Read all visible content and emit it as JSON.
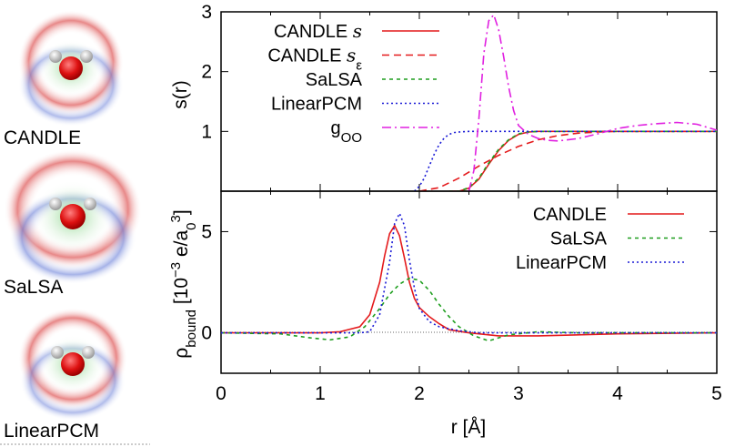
{
  "models": [
    {
      "label": "CANDLE",
      "icon": "water-molecule-candle-icon"
    },
    {
      "label": "SaLSA",
      "icon": "water-molecule-salsa-icon"
    },
    {
      "label": "LinearPCM",
      "icon": "water-molecule-linearpcm-icon"
    }
  ],
  "colors": {
    "CANDLE": "#e41a1c",
    "SaLSA": "#1e9e1e",
    "LinearPCM": "#1a1ad6",
    "gOO": "#e020e0",
    "molecule_oxygen": "#dd1111",
    "molecule_hydrogen": "#cccccc",
    "cavity_positive": "#e06060",
    "cavity_negative": "#6a7fd8",
    "cavity_core": "#7fd07f"
  },
  "chart_data": [
    {
      "type": "line",
      "title": "",
      "xlabel": "",
      "ylabel": "s(r)",
      "xlim": [
        0,
        5
      ],
      "ylim": [
        0,
        3
      ],
      "yticks": [
        "1",
        "2",
        "3"
      ],
      "legend_position": "top-left",
      "series": [
        {
          "name": "CANDLE s",
          "label_main": "CANDLE ",
          "label_sym": "s",
          "label_sub": "",
          "color": "#e41a1c",
          "dash": "",
          "x": [
            2.3,
            2.4,
            2.5,
            2.6,
            2.7,
            2.8,
            2.9,
            3.0,
            3.1,
            3.2,
            5.0
          ],
          "y": [
            0.0,
            0.0,
            0.05,
            0.2,
            0.45,
            0.68,
            0.85,
            0.95,
            0.99,
            1.0,
            1.0
          ]
        },
        {
          "name": "CANDLE sε",
          "label_main": "CANDLE ",
          "label_sym": "s",
          "label_sub": "ε",
          "color": "#e41a1c",
          "dash": "8,5",
          "x": [
            2.0,
            2.2,
            2.4,
            2.6,
            2.8,
            3.0,
            3.2,
            3.4,
            3.6,
            3.8,
            4.0,
            5.0
          ],
          "y": [
            0.0,
            0.06,
            0.22,
            0.42,
            0.6,
            0.75,
            0.86,
            0.93,
            0.97,
            0.99,
            1.0,
            1.0
          ]
        },
        {
          "name": "SaLSA",
          "label_main": "SaLSA",
          "label_sym": "",
          "label_sub": "",
          "color": "#1e9e1e",
          "dash": "4,4",
          "x": [
            2.3,
            2.4,
            2.5,
            2.6,
            2.7,
            2.8,
            2.9,
            3.0,
            3.1,
            3.2,
            5.0
          ],
          "y": [
            0.0,
            0.0,
            0.06,
            0.22,
            0.47,
            0.7,
            0.86,
            0.96,
            0.99,
            1.0,
            1.0
          ]
        },
        {
          "name": "LinearPCM",
          "label_main": "LinearPCM",
          "label_sym": "",
          "label_sub": "",
          "color": "#1a1ad6",
          "dash": "2,3",
          "x": [
            1.95,
            2.0,
            2.05,
            2.1,
            2.15,
            2.2,
            2.25,
            2.3,
            2.35,
            2.4,
            2.5,
            5.0
          ],
          "y": [
            0.0,
            0.08,
            0.22,
            0.42,
            0.62,
            0.78,
            0.89,
            0.95,
            0.98,
            0.99,
            1.0,
            1.0
          ]
        },
        {
          "name": "gOO",
          "label_main": "g",
          "label_sym": "",
          "label_sub": "OO",
          "color": "#e020e0",
          "dash": "10,4,2,4",
          "x": [
            2.5,
            2.55,
            2.6,
            2.65,
            2.7,
            2.75,
            2.8,
            2.85,
            2.9,
            2.95,
            3.0,
            3.1,
            3.2,
            3.3,
            3.4,
            3.6,
            3.8,
            4.0,
            4.2,
            4.4,
            4.6,
            4.8,
            5.0
          ],
          "y": [
            0.0,
            0.35,
            1.2,
            2.3,
            2.85,
            2.95,
            2.7,
            2.25,
            1.75,
            1.35,
            1.1,
            0.95,
            0.88,
            0.85,
            0.84,
            0.88,
            0.96,
            1.05,
            1.1,
            1.13,
            1.15,
            1.12,
            1.02
          ]
        }
      ]
    },
    {
      "type": "line",
      "title": "",
      "xlabel": "r [Å]",
      "ylabel_main": "ρ",
      "ylabel_sub": "bound",
      "ylabel_rest": " [10",
      "ylabel_exp": "−3",
      "ylabel_unit": " e/a",
      "ylabel_unit_sub": "0",
      "ylabel_unit_exp": "3",
      "ylabel_close": "]",
      "xlim": [
        0,
        5
      ],
      "ylim": [
        -2,
        7
      ],
      "xticks": [
        "0",
        "1",
        "2",
        "3",
        "4",
        "5"
      ],
      "yticks": [
        "0",
        "5"
      ],
      "legend_position": "top-right",
      "zero_line": true,
      "series": [
        {
          "name": "CANDLE",
          "color": "#e41a1c",
          "dash": "",
          "x": [
            0.0,
            1.0,
            1.2,
            1.4,
            1.5,
            1.6,
            1.65,
            1.7,
            1.75,
            1.8,
            1.85,
            1.9,
            1.95,
            2.0,
            2.1,
            2.2,
            2.3,
            2.5,
            2.8,
            3.2,
            4.0,
            5.0
          ],
          "y": [
            0.0,
            0.0,
            0.05,
            0.3,
            0.9,
            2.5,
            3.8,
            4.9,
            5.3,
            4.8,
            3.7,
            2.5,
            1.7,
            1.25,
            0.8,
            0.45,
            0.15,
            0.0,
            -0.15,
            -0.15,
            -0.05,
            0.0
          ]
        },
        {
          "name": "SaLSA",
          "color": "#1e9e1e",
          "dash": "4,4",
          "x": [
            0.0,
            0.6,
            0.9,
            1.1,
            1.3,
            1.45,
            1.6,
            1.7,
            1.8,
            1.9,
            2.0,
            2.1,
            2.2,
            2.3,
            2.4,
            2.55,
            2.7,
            2.9,
            3.2,
            3.6,
            5.0
          ],
          "y": [
            0.0,
            -0.05,
            -0.25,
            -0.35,
            -0.2,
            0.3,
            1.2,
            1.9,
            2.4,
            2.7,
            2.6,
            2.1,
            1.4,
            0.8,
            0.3,
            -0.15,
            -0.4,
            -0.1,
            0.05,
            0.0,
            0.0
          ]
        },
        {
          "name": "LinearPCM",
          "color": "#1a1ad6",
          "dash": "2,3",
          "x": [
            0.0,
            1.4,
            1.5,
            1.6,
            1.7,
            1.75,
            1.8,
            1.85,
            1.9,
            1.95,
            2.0,
            2.1,
            2.2,
            2.4,
            2.6,
            5.0
          ],
          "y": [
            0.0,
            0.0,
            0.05,
            0.9,
            3.5,
            5.4,
            5.9,
            5.3,
            3.6,
            2.2,
            1.2,
            0.55,
            0.3,
            0.1,
            0.0,
            0.0
          ]
        }
      ]
    }
  ]
}
